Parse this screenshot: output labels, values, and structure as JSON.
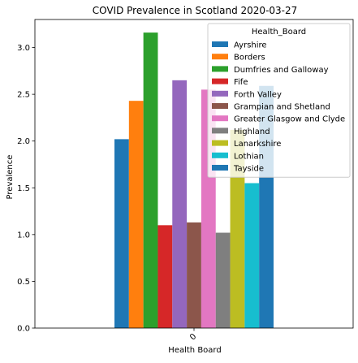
{
  "chart_data": {
    "type": "bar",
    "title": "COVID Prevalence in Scotland 2020-03-27",
    "xlabel": "Health Board",
    "ylabel": "Prevalence",
    "categories": [
      "0"
    ],
    "ylim": [
      0,
      3.3
    ],
    "yticks": [
      "0.0",
      "0.5",
      "1.0",
      "1.5",
      "2.0",
      "2.5",
      "3.0"
    ],
    "grid": false,
    "legend_title": "Health_Board",
    "legend_position": "top-right",
    "series": [
      {
        "name": "Ayrshire",
        "color": "#1f77b4",
        "values": [
          2.02
        ]
      },
      {
        "name": "Borders",
        "color": "#ff7f0e",
        "values": [
          2.43
        ]
      },
      {
        "name": "Dumfries and Galloway",
        "color": "#2ca02c",
        "values": [
          3.16
        ]
      },
      {
        "name": "Fife",
        "color": "#d62728",
        "values": [
          1.1
        ]
      },
      {
        "name": "Forth Valley",
        "color": "#9467bd",
        "values": [
          2.65
        ]
      },
      {
        "name": "Grampian and Shetland",
        "color": "#8c564b",
        "values": [
          1.13
        ]
      },
      {
        "name": "Greater Glasgow and Clyde",
        "color": "#e377c2",
        "values": [
          2.55
        ]
      },
      {
        "name": "Highland",
        "color": "#7f7f7f",
        "values": [
          1.02
        ]
      },
      {
        "name": "Lanarkshire",
        "color": "#bcbd22",
        "values": [
          2.12
        ]
      },
      {
        "name": "Lothian",
        "color": "#17becf",
        "values": [
          1.55
        ]
      },
      {
        "name": "Tayside",
        "color": "#1f77b4",
        "values": [
          2.59
        ]
      }
    ]
  }
}
